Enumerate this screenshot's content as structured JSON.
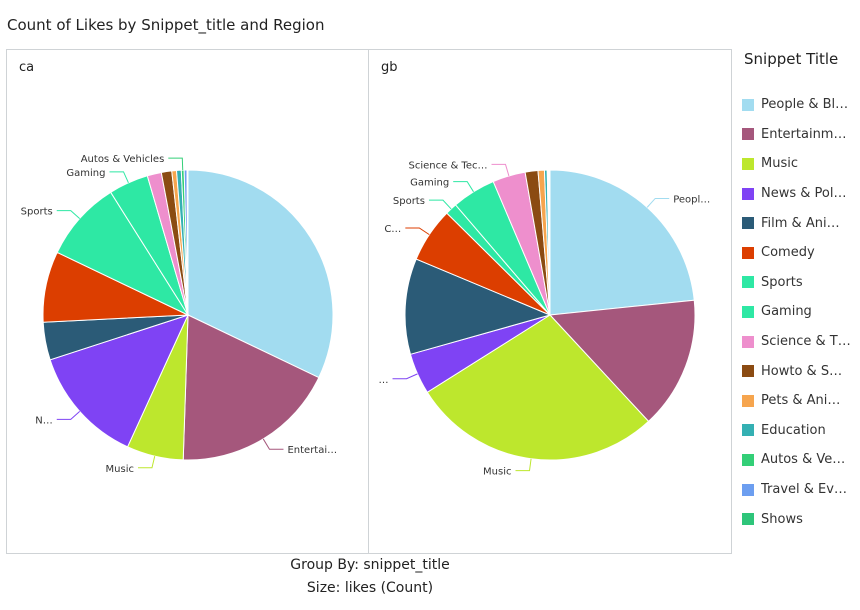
{
  "chart_title": "Count of Likes by Snippet_title and Region",
  "legend_title": "Snippet Title",
  "footer": {
    "group_by": "Group By: snippet_title",
    "size": "Size: likes (Count)"
  },
  "colors": {
    "border": "#cfd3d6"
  },
  "chart_data": [
    {
      "type": "pie",
      "facet": "ca",
      "categories": [
        "People & Blogs",
        "Entertainment",
        "Music",
        "News & Politics",
        "Film & Animation",
        "Comedy",
        "Sports",
        "Gaming",
        "Science & Technology",
        "Howto & Style",
        "Pets & Animals",
        "Education",
        "Autos & Vehicles",
        "Travel & Events",
        "Shows"
      ],
      "values": [
        30.5,
        17.5,
        6.0,
        12.5,
        4.0,
        7.5,
        8.5,
        4.2,
        1.5,
        1.1,
        0.5,
        0.5,
        0.3,
        0.3,
        0.1
      ],
      "labels_shown": [
        "",
        "Entertai…",
        "Music",
        "N…",
        "",
        "",
        "Sports",
        "Gaming",
        "",
        "",
        "",
        "",
        "Autos & Vehicles",
        "",
        ""
      ]
    },
    {
      "type": "pie",
      "facet": "gb",
      "categories": [
        "People & Blogs",
        "Entertainment",
        "Music",
        "News & Politics",
        "Film & Animation",
        "Comedy",
        "Sports",
        "Gaming",
        "Science & Technology",
        "Howto & Style",
        "Pets & Animals",
        "Education",
        "Autos & Vehicles",
        "Travel & Events",
        "Shows"
      ],
      "values": [
        23.0,
        14.5,
        27.5,
        4.5,
        10.5,
        6.0,
        1.3,
        4.8,
        3.6,
        1.4,
        0.7,
        0.3,
        0.1,
        0.1,
        0.1
      ],
      "labels_shown": [
        "Peopl…",
        "",
        "Music",
        "…",
        "",
        "C…",
        "Sports",
        "Gaming",
        "Science & Tec…",
        "",
        "",
        "",
        "",
        "",
        ""
      ]
    }
  ],
  "legend": [
    {
      "label": "People & Bl…",
      "color": "#a2dcf0"
    },
    {
      "label": "Entertainm…",
      "color": "#a5577c"
    },
    {
      "label": "Music",
      "color": "#bde72d"
    },
    {
      "label": "News & Pol…",
      "color": "#7f43f4"
    },
    {
      "label": "Film & Ani…",
      "color": "#2b5b77"
    },
    {
      "label": "Comedy",
      "color": "#dc3e00"
    },
    {
      "label": "Sports",
      "color": "#2ee8a4"
    },
    {
      "label": "Gaming",
      "color": "#2ee8a4"
    },
    {
      "label": "Science & T…",
      "color": "#ee8fcd"
    },
    {
      "label": "Howto & S…",
      "color": "#8b4b12"
    },
    {
      "label": "Pets & Ani…",
      "color": "#f6a54e"
    },
    {
      "label": "Education",
      "color": "#34b0b3"
    },
    {
      "label": "Autos & Ve…",
      "color": "#33cf77"
    },
    {
      "label": "Travel & Ev…",
      "color": "#6c9ef0"
    },
    {
      "label": "Shows",
      "color": "#2ec57a"
    }
  ]
}
